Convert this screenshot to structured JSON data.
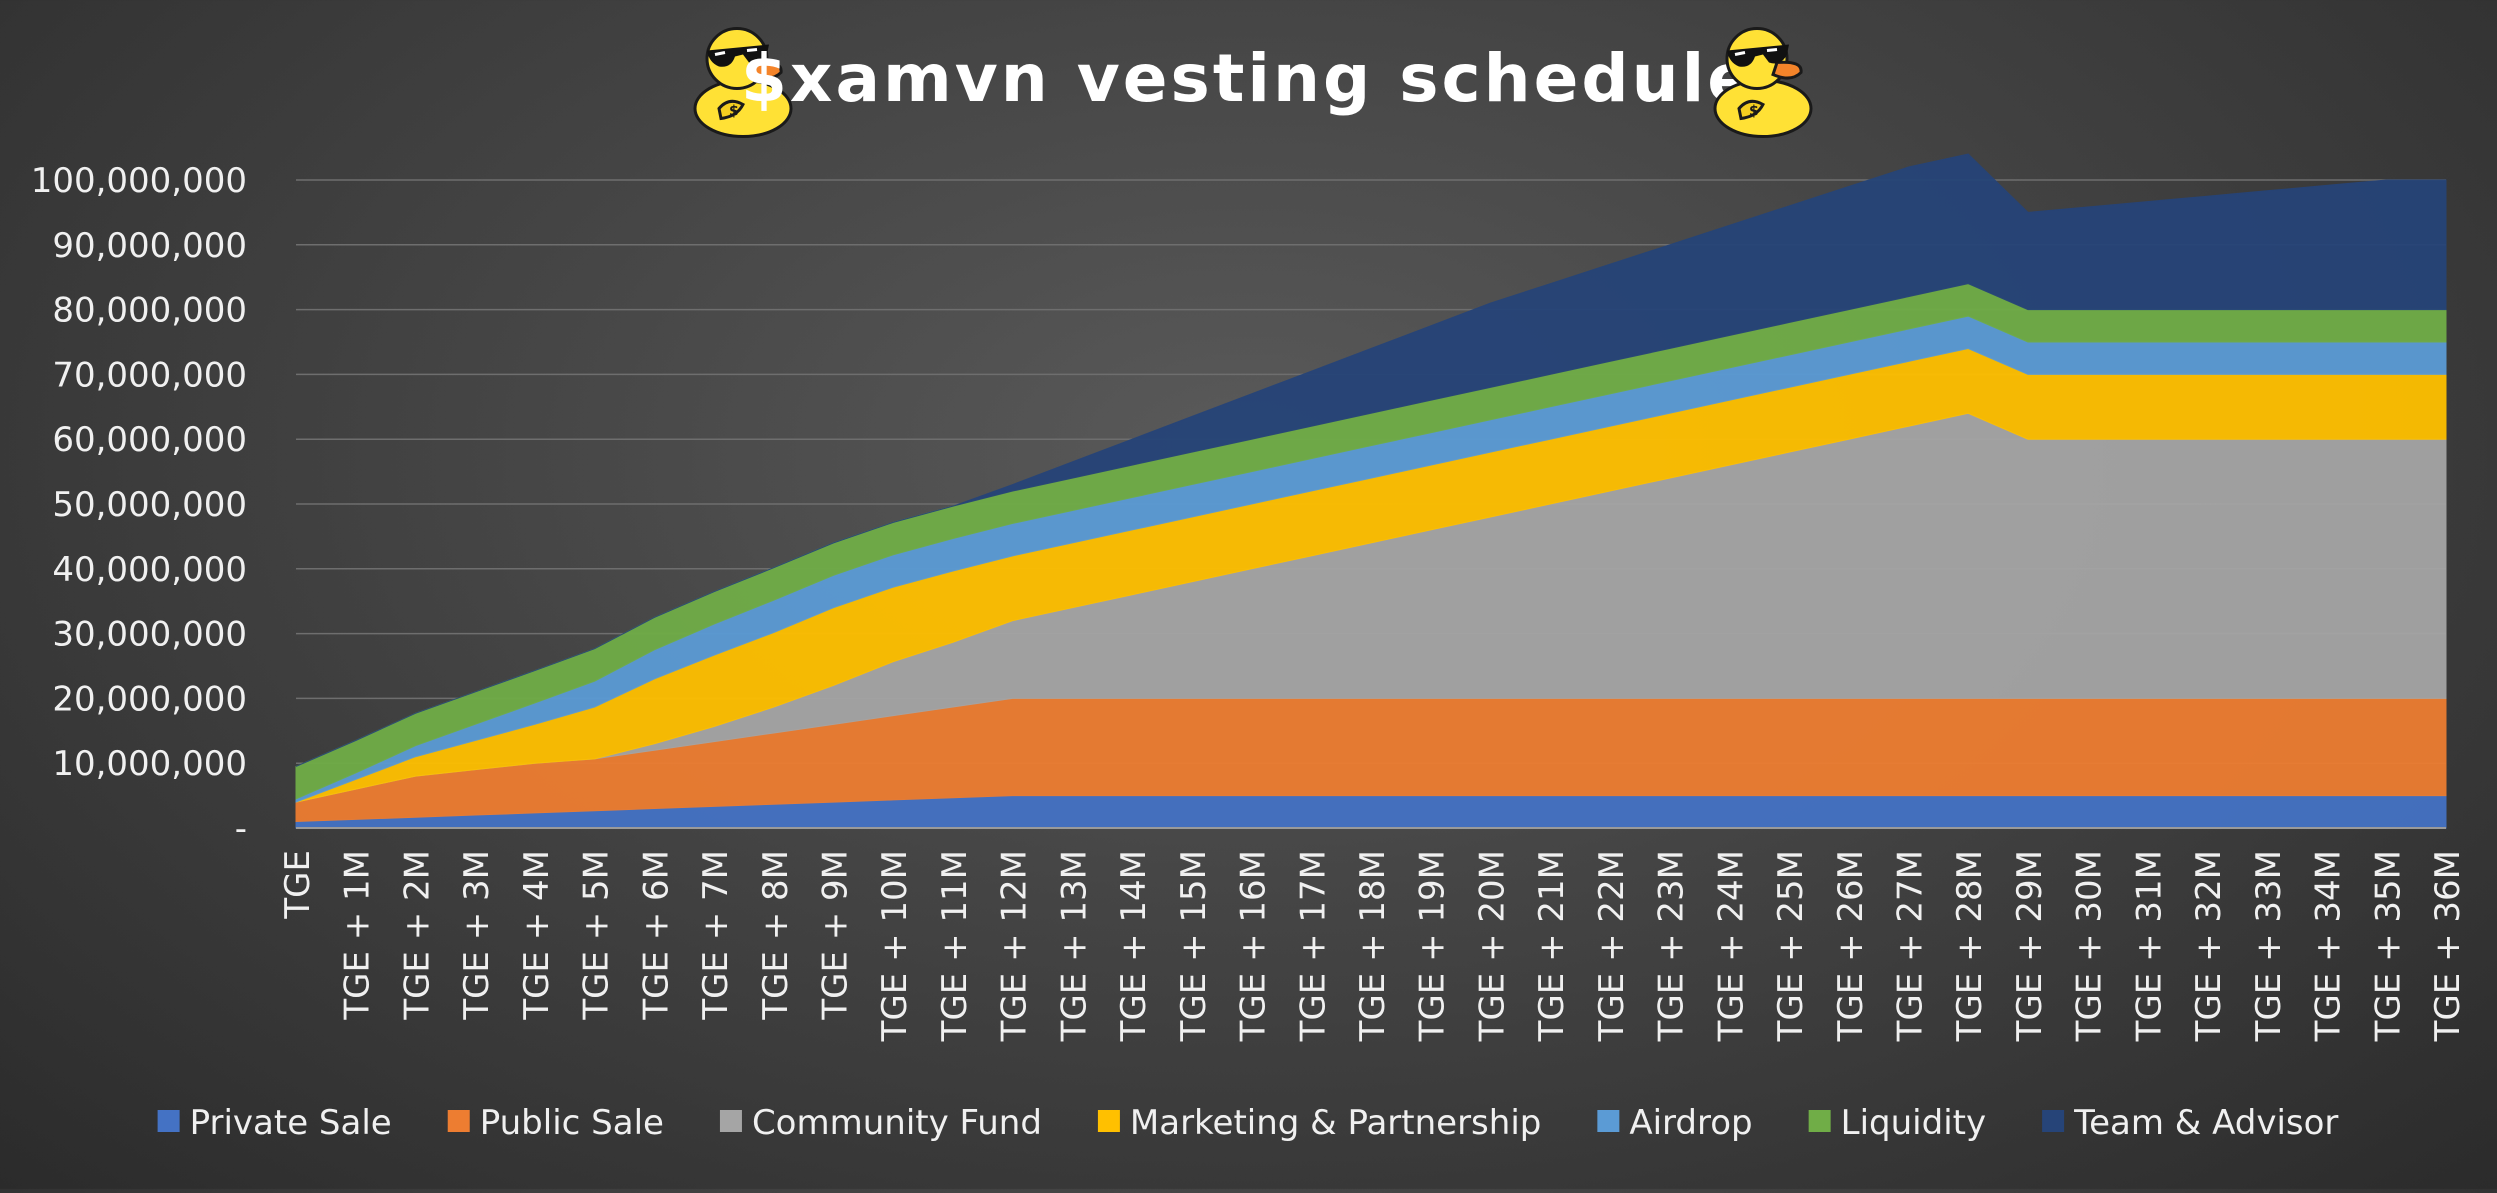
{
  "chart_data": {
    "type": "area",
    "stacked": true,
    "title": "$xamvn vesting schedule",
    "title_icon": "sunglasses-duck-icon",
    "xlabel": "",
    "ylabel": "",
    "ylim": [
      0,
      100000000
    ],
    "yticks": [
      {
        "value": 0,
        "label": "-"
      },
      {
        "value": 10000000,
        "label": "10,000,000"
      },
      {
        "value": 20000000,
        "label": "20,000,000"
      },
      {
        "value": 30000000,
        "label": "30,000,000"
      },
      {
        "value": 40000000,
        "label": "40,000,000"
      },
      {
        "value": 50000000,
        "label": "50,000,000"
      },
      {
        "value": 60000000,
        "label": "60,000,000"
      },
      {
        "value": 70000000,
        "label": "70,000,000"
      },
      {
        "value": 80000000,
        "label": "80,000,000"
      },
      {
        "value": 90000000,
        "label": "90,000,000"
      },
      {
        "value": 100000000,
        "label": "100,000,000"
      }
    ],
    "grid": true,
    "legend_position": "bottom",
    "categories": [
      "TGE",
      "TGE + 1M",
      "TGE + 2M",
      "TGE + 3M",
      "TGE + 4M",
      "TGE + 5M",
      "TGE + 6M",
      "TGE + 7M",
      "TGE + 8M",
      "TGE + 9M",
      "TGE + 10M",
      "TGE + 11M",
      "TGE + 12M",
      "TGE + 13M",
      "TGE + 14M",
      "TGE + 15M",
      "TGE + 16M",
      "TGE + 17M",
      "TGE + 18M",
      "TGE + 19M",
      "TGE + 20M",
      "TGE + 21M",
      "TGE + 22M",
      "TGE + 23M",
      "TGE + 24M",
      "TGE + 25M",
      "TGE + 26M",
      "TGE + 27M",
      "TGE + 28M",
      "TGE + 29M",
      "TGE + 30M",
      "TGE + 31M",
      "TGE + 32M",
      "TGE + 33M",
      "TGE + 34M",
      "TGE + 35M",
      "TGE + 36M"
    ],
    "series": [
      {
        "name": "Private Sale",
        "color": "#4472c4",
        "values": [
          1000000,
          1333333,
          1666667,
          2000000,
          2333333,
          2666667,
          3000000,
          3333333,
          3666667,
          4000000,
          4333333,
          4666667,
          5000000,
          5000000,
          5000000,
          5000000,
          5000000,
          5000000,
          5000000,
          5000000,
          5000000,
          5000000,
          5000000,
          5000000,
          5000000,
          5000000,
          5000000,
          5000000,
          5000000,
          5000000,
          5000000,
          5000000,
          5000000,
          5000000,
          5000000,
          5000000,
          5000000
        ]
      },
      {
        "name": "Public Sale",
        "color": "#ed7d31",
        "values": [
          3000000,
          4666667,
          6333333,
          7000000,
          7666667,
          8000000,
          9000000,
          10000000,
          11000000,
          12000000,
          13000000,
          14000000,
          15000000,
          15000000,
          15000000,
          15000000,
          15000000,
          15000000,
          15000000,
          15000000,
          15000000,
          15000000,
          15000000,
          15000000,
          15000000,
          15000000,
          15000000,
          15000000,
          15000000,
          15000000,
          15000000,
          15000000,
          15000000,
          15000000,
          15000000,
          15000000,
          15000000
        ]
      },
      {
        "name": "Community Fund",
        "color": "#a5a5a5",
        "values": [
          0,
          0,
          0,
          0,
          0,
          0,
          1000000,
          2333333,
          4000000,
          6000000,
          8333333,
          10000000,
          12000000,
          14000000,
          16000000,
          18000000,
          20000000,
          22000000,
          24000000,
          26000000,
          28000000,
          30000000,
          32000000,
          34000000,
          36000000,
          38000000,
          40000000,
          42000000,
          44000000,
          40000000,
          40000000,
          40000000,
          40000000,
          40000000,
          40000000,
          40000000,
          40000000
        ]
      },
      {
        "name": "Marketing & Partnership",
        "color": "#ffc000",
        "values": [
          0,
          1500000,
          3000000,
          4500000,
          6000000,
          8000000,
          10000000,
          11000000,
          11500000,
          12000000,
          11500000,
          11000000,
          10000000,
          10000000,
          10000000,
          10000000,
          10000000,
          10000000,
          10000000,
          10000000,
          10000000,
          10000000,
          10000000,
          10000000,
          10000000,
          10000000,
          10000000,
          10000000,
          10000000,
          10000000,
          10000000,
          10000000,
          10000000,
          10000000,
          10000000,
          10000000,
          10000000
        ]
      },
      {
        "name": "Airdrop",
        "color": "#5b9bd5",
        "values": [
          500000,
          1000000,
          1700000,
          2500000,
          3300000,
          4000000,
          4500000,
          4800000,
          5000000,
          5000000,
          5000000,
          5000000,
          5000000,
          5000000,
          5000000,
          5000000,
          5000000,
          5000000,
          5000000,
          5000000,
          5000000,
          5000000,
          5000000,
          5000000,
          5000000,
          5000000,
          5000000,
          5000000,
          5000000,
          5000000,
          5000000,
          5000000,
          5000000,
          5000000,
          5000000,
          5000000,
          5000000
        ]
      },
      {
        "name": "Liquidity",
        "color": "#70ad47",
        "values": [
          5000000,
          5000000,
          5000000,
          5000000,
          5000000,
          5000000,
          5000000,
          5000000,
          5000000,
          5000000,
          5000000,
          5000000,
          5000000,
          5000000,
          5000000,
          5000000,
          5000000,
          5000000,
          5000000,
          5000000,
          5000000,
          5000000,
          5000000,
          5000000,
          5000000,
          5000000,
          5000000,
          5000000,
          5000000,
          5000000,
          5000000,
          5000000,
          5000000,
          5000000,
          5000000,
          5000000,
          5000000
        ]
      },
      {
        "name": "Team & Advisor",
        "color": "#264478",
        "values": [
          0,
          0,
          0,
          0,
          0,
          0,
          0,
          0,
          0,
          0,
          0,
          0,
          1000000,
          2500000,
          4000000,
          5500000,
          7000000,
          8500000,
          10000000,
          11500000,
          13000000,
          14000000,
          15000000,
          16000000,
          17000000,
          18000000,
          19000000,
          20000000,
          20000000,
          15000000,
          15833333,
          16666667,
          17500000,
          18333333,
          19166667,
          20000000,
          20000000
        ]
      }
    ]
  }
}
